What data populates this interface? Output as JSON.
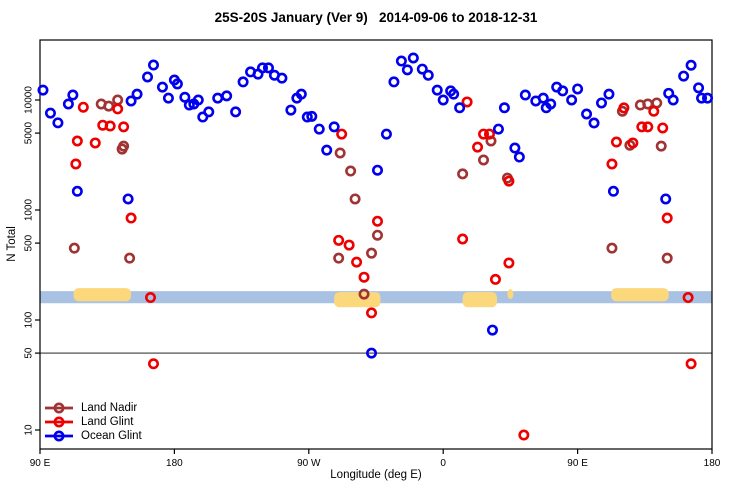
{
  "chart_data": {
    "type": "scatter",
    "title": "25S-20S January (Ver 9)   2014-09-06 to 2018-12-31",
    "xlabel": "Longitude (deg E)",
    "ylabel": "N Total",
    "grid": false,
    "legend_position": "bottom-left",
    "x_axis": {
      "range": [
        90,
        540
      ],
      "ticks": [
        90,
        180,
        270,
        360,
        450,
        540
      ],
      "tick_labels": [
        "90 E",
        "180",
        "90 W",
        "0",
        "90 E",
        "180"
      ]
    },
    "y_axis": {
      "scale": "log",
      "top_value": 35000,
      "bottom_value": 6.7,
      "ticks": [
        10000,
        5000,
        1000,
        500,
        100,
        50,
        10
      ],
      "tick_labels": [
        "10000",
        "5000",
        "1000",
        "500",
        "100",
        "50",
        "10"
      ]
    },
    "reference_line": {
      "y": 50,
      "color": "#6e6e6e"
    },
    "latitude_band": {
      "top_value": 183,
      "bottom_value": 142,
      "ocean_color": "#a9c2e3",
      "land_color": "#fbd87b",
      "land_segments": [
        {
          "from": 112.5,
          "to": 151,
          "bulge": "top"
        },
        {
          "from": 287,
          "to": 318,
          "bulge": "bottom"
        },
        {
          "from": 373,
          "to": 396,
          "bulge": "bottom"
        },
        {
          "from": 403,
          "to": 407,
          "bulge": "small"
        },
        {
          "from": 472.5,
          "to": 511,
          "bulge": "top"
        }
      ]
    },
    "series": [
      {
        "name": "Land Nadir",
        "color": "#a03333",
        "points": [
          [
            131,
            9200
          ],
          [
            136,
            8800
          ],
          [
            142,
            10000
          ],
          [
            145,
            3580
          ],
          [
            146,
            3810
          ],
          [
            113,
            450
          ],
          [
            150,
            365
          ],
          [
            291,
            3300
          ],
          [
            298,
            2260
          ],
          [
            301,
            1260
          ],
          [
            316,
            590
          ],
          [
            290,
            365
          ],
          [
            312,
            405
          ],
          [
            307,
            172
          ],
          [
            392,
            4240
          ],
          [
            387,
            2850
          ],
          [
            373,
            2130
          ],
          [
            403,
            1950
          ],
          [
            480,
            7900
          ],
          [
            492,
            9000
          ],
          [
            497,
            9200
          ],
          [
            503,
            9400
          ],
          [
            485,
            3880
          ],
          [
            506,
            3810
          ],
          [
            473,
            450
          ],
          [
            510,
            365
          ]
        ]
      },
      {
        "name": "Land Glint",
        "color": "#ee0000",
        "points": [
          [
            119,
            8600
          ],
          [
            142,
            8300
          ],
          [
            132,
            5900
          ],
          [
            137,
            5800
          ],
          [
            146,
            5700
          ],
          [
            115,
            4240
          ],
          [
            127,
            4070
          ],
          [
            114,
            2620
          ],
          [
            151,
            845
          ],
          [
            164,
            160
          ],
          [
            166,
            40
          ],
          [
            292,
            4900
          ],
          [
            316,
            790
          ],
          [
            290,
            530
          ],
          [
            297,
            480
          ],
          [
            302,
            336
          ],
          [
            307,
            245
          ],
          [
            312,
            116
          ],
          [
            376,
            9600
          ],
          [
            387,
            4900
          ],
          [
            391,
            4900
          ],
          [
            383,
            3730
          ],
          [
            404,
            1830
          ],
          [
            373,
            545
          ],
          [
            404,
            330
          ],
          [
            395,
            234
          ],
          [
            414,
            9
          ],
          [
            473,
            2620
          ],
          [
            476,
            4150
          ],
          [
            481,
            8470
          ],
          [
            487,
            4070
          ],
          [
            493,
            5700
          ],
          [
            497,
            5700
          ],
          [
            501,
            7900
          ],
          [
            507,
            5570
          ],
          [
            510,
            845
          ],
          [
            524,
            160
          ],
          [
            526,
            40
          ]
        ]
      },
      {
        "name": "Ocean Glint",
        "color": "#0000ee",
        "points": [
          [
            92,
            12300
          ],
          [
            97,
            7600
          ],
          [
            102,
            6200
          ],
          [
            109,
            9200
          ],
          [
            112,
            11100
          ],
          [
            151,
            9800
          ],
          [
            155,
            11300
          ],
          [
            162,
            16200
          ],
          [
            166,
            20800
          ],
          [
            172,
            13100
          ],
          [
            176,
            10400
          ],
          [
            180,
            15200
          ],
          [
            182,
            14000
          ],
          [
            187,
            10600
          ],
          [
            190,
            9000
          ],
          [
            193,
            9200
          ],
          [
            196,
            10000
          ],
          [
            199,
            7000
          ],
          [
            203,
            7800
          ],
          [
            209,
            10400
          ],
          [
            215,
            10900
          ],
          [
            221,
            7800
          ],
          [
            226,
            14600
          ],
          [
            231,
            18000
          ],
          [
            236,
            17200
          ],
          [
            239,
            19600
          ],
          [
            243,
            19600
          ],
          [
            247,
            16800
          ],
          [
            252,
            15800
          ],
          [
            258,
            8100
          ],
          [
            262,
            10400
          ],
          [
            265,
            11300
          ],
          [
            269,
            7000
          ],
          [
            272,
            7100
          ],
          [
            277,
            5440
          ],
          [
            282,
            3500
          ],
          [
            287,
            5700
          ],
          [
            322,
            4900
          ],
          [
            316,
            2300
          ],
          [
            327,
            14600
          ],
          [
            332,
            22600
          ],
          [
            340,
            24100
          ],
          [
            336,
            18800
          ],
          [
            346,
            19100
          ],
          [
            350,
            16800
          ],
          [
            356,
            12300
          ],
          [
            360,
            10000
          ],
          [
            365,
            12100
          ],
          [
            367,
            11300
          ],
          [
            371,
            8500
          ],
          [
            401,
            8500
          ],
          [
            397,
            5440
          ],
          [
            408,
            3660
          ],
          [
            411,
            3030
          ],
          [
            415,
            11100
          ],
          [
            422,
            9800
          ],
          [
            427,
            10400
          ],
          [
            429,
            8500
          ],
          [
            432,
            9200
          ],
          [
            436,
            13100
          ],
          [
            440,
            12100
          ],
          [
            446,
            10000
          ],
          [
            450,
            12600
          ],
          [
            456,
            7460
          ],
          [
            461,
            6180
          ],
          [
            466,
            9400
          ],
          [
            471,
            11300
          ],
          [
            511,
            11500
          ],
          [
            514,
            10000
          ],
          [
            521,
            16500
          ],
          [
            526,
            20700
          ],
          [
            531,
            12900
          ],
          [
            533,
            10400
          ],
          [
            537,
            10400
          ],
          [
            115,
            1480
          ],
          [
            149,
            1260
          ],
          [
            474,
            1480
          ],
          [
            509,
            1260
          ],
          [
            312,
            50
          ],
          [
            393,
            81
          ]
        ]
      }
    ]
  },
  "legend": {
    "items": [
      {
        "label": "Land Nadir",
        "color": "#a03333"
      },
      {
        "label": "Land Glint",
        "color": "#ee0000"
      },
      {
        "label": "Ocean Glint",
        "color": "#0000ee"
      }
    ]
  }
}
